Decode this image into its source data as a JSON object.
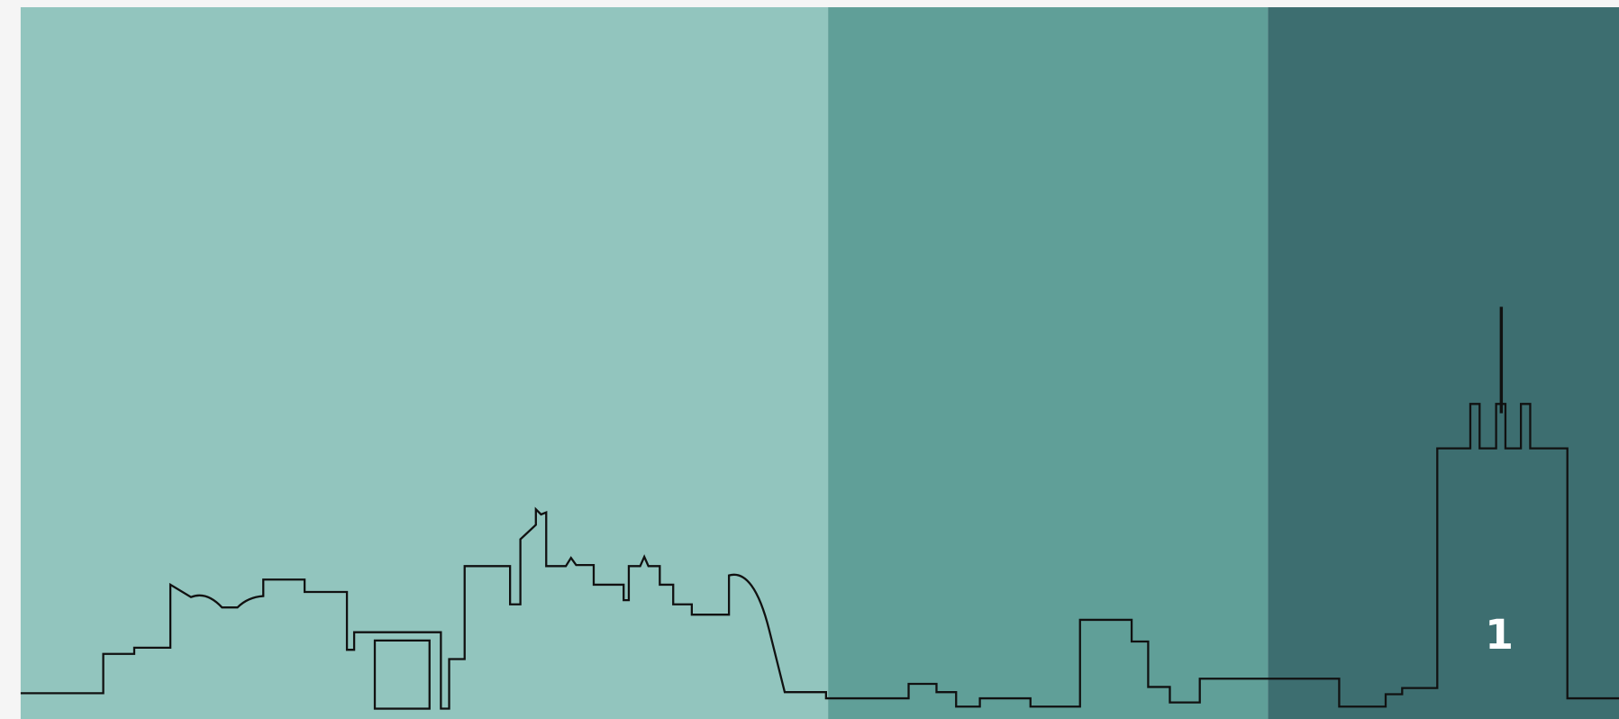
{
  "panel_label": "1"
}
